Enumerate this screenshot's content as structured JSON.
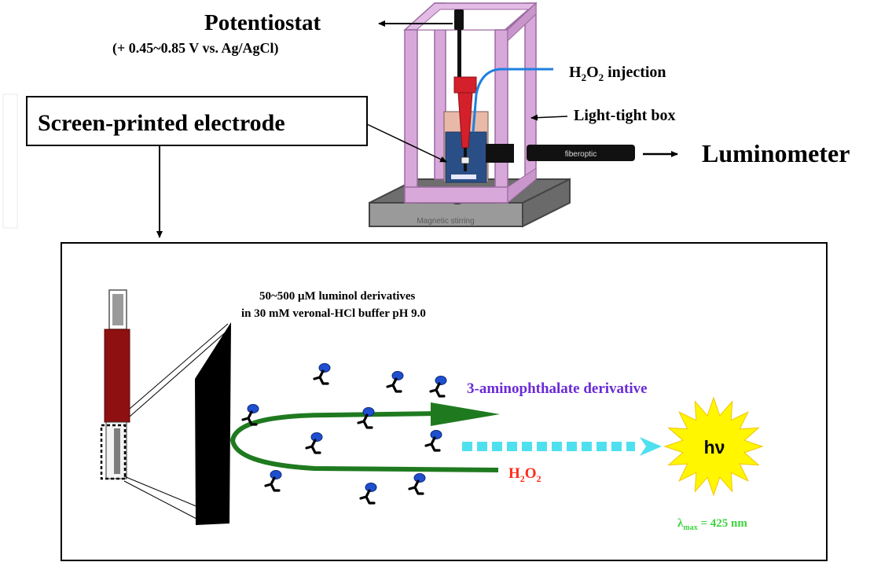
{
  "top": {
    "potentiostat_title": "Potentiostat",
    "potentiostat_voltage": "(+ 0.45~0.85 V vs. Ag/AgCl)",
    "h2o2_injection": {
      "prefix": "H",
      "sub1": "2",
      "mid": "O",
      "sub2": "2",
      "suffix": " injection"
    },
    "light_tight_box": "Light-tight box",
    "screen_printed_electrode": "Screen-printed electrode",
    "fiberoptic": "fiberoptic",
    "luminometer": "Luminometer",
    "magnetic_stirring": "Magnetic stirring"
  },
  "bottom": {
    "reagent_line1": "50~500 μM luminol derivatives",
    "reagent_line2": "in 30 mM veronal-HCl buffer pH 9.0",
    "product_label": "3-aminophthalate derivative",
    "h2o2_label": {
      "prefix": "H",
      "sub1": "2",
      "mid": "O",
      "sub2": "2"
    },
    "hv_label": "hν",
    "lambda_label": {
      "symbol": "λ",
      "sub": "max",
      "value": " = 425 nm"
    }
  },
  "colors": {
    "box_pink": "#d7a8d9",
    "box_edge": "#9b6aa0",
    "base_grey": "#8a8a8a",
    "vial_blue": "#2a4f86",
    "syringe_red": "#d4202a",
    "fiber_black": "#111111",
    "tube_blue": "#1e7fe0",
    "electrode_red": "#8f1010",
    "arrow_green": "#1f7a1f",
    "molecule_blue": "#1f4fcf",
    "product_purple": "#6a2ad6",
    "h2o2_red": "#ff2a1a",
    "dotted_cyan": "#4fe0f0",
    "sun_yellow": "#fff600",
    "lambda_green": "#3fd33f"
  }
}
